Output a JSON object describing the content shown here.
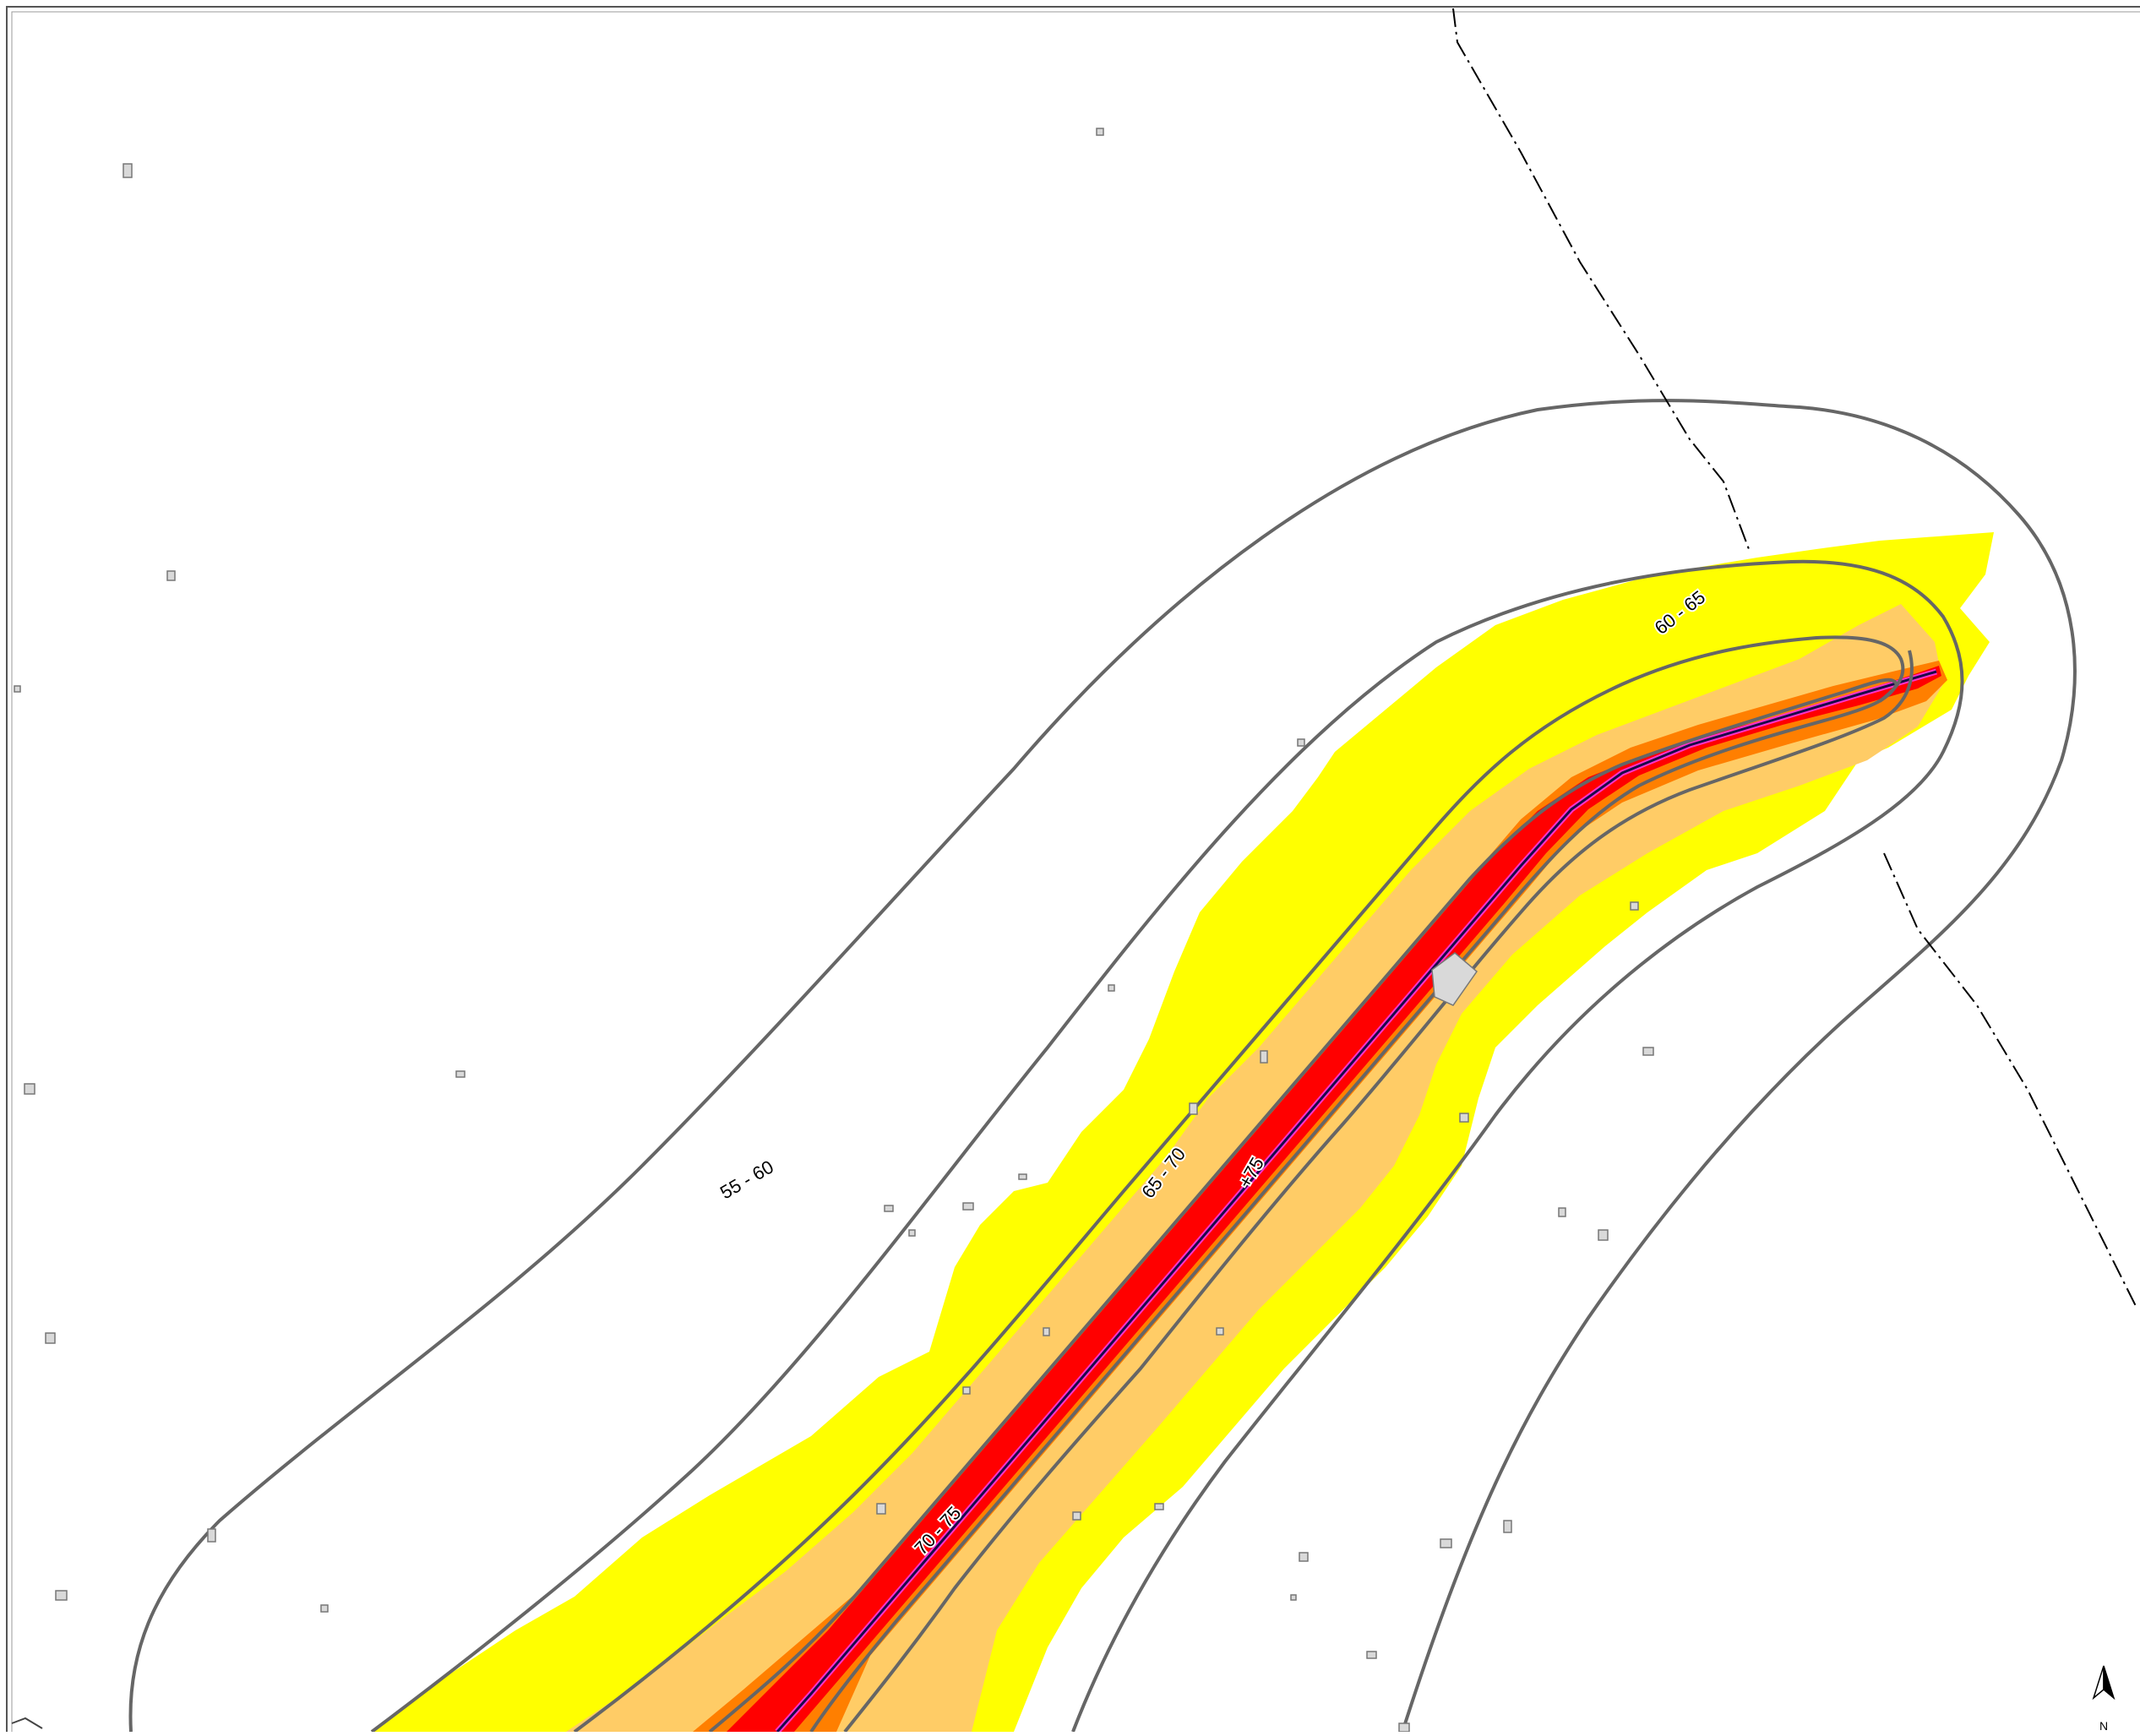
{
  "map": {
    "contour_labels": [
      {
        "id": "label-55-60",
        "text": "55 - 60"
      },
      {
        "id": "label-60-65",
        "text": "60 - 65"
      },
      {
        "id": "label-65-70",
        "text": "65 - 70"
      },
      {
        "id": "label-70-75",
        "text": "70 - 75"
      },
      {
        "id": "label-75-plus",
        "text": "+75"
      }
    ],
    "north_arrow": {
      "label": "N",
      "icon": "north-arrow-icon"
    },
    "colors": {
      "zone_55_60": "#ffffff",
      "zone_60_65": "#ffff00",
      "zone_65_70": "#ffcc66",
      "zone_70_75": "#ff7f00",
      "zone_75_plus": "#ff0000",
      "route_centerline": "#1a0a4a",
      "route_highlight": "#ff33cc",
      "contour_line": "#666666",
      "boundary_line": "#000000",
      "building": "#d9d9d9"
    }
  }
}
